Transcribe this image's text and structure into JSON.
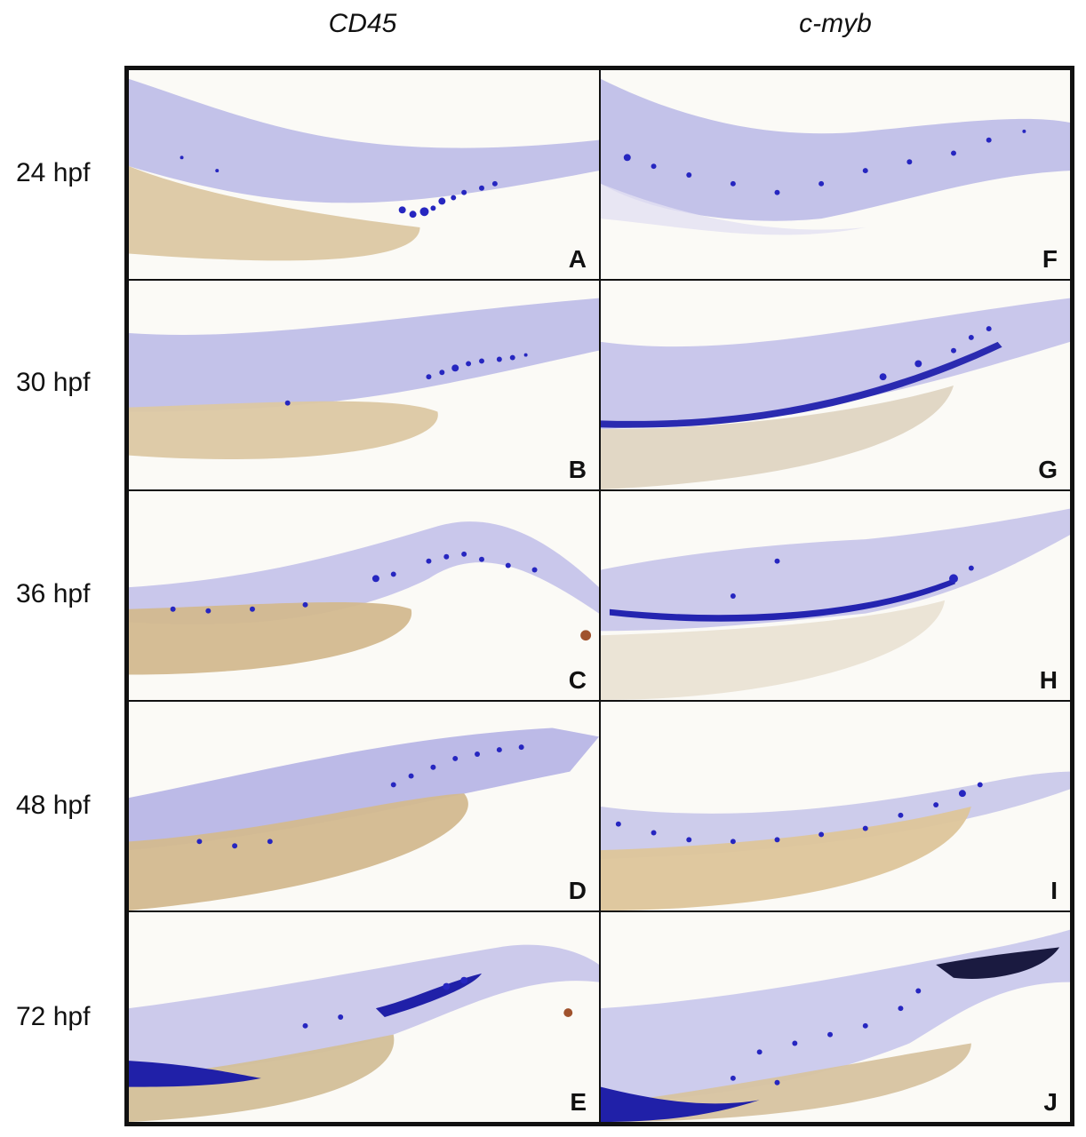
{
  "column_headers": [
    "CD45",
    "c-myb"
  ],
  "row_labels": [
    "24 hpf",
    "30 hpf",
    "36 hpf",
    "48 hpf",
    "72 hpf"
  ],
  "panel_letters": {
    "CD45": [
      "A",
      "B",
      "C",
      "D",
      "E"
    ],
    "c-myb": [
      "F",
      "G",
      "H",
      "I",
      "J"
    ]
  },
  "colors": {
    "stain": "#2a2ac8",
    "tissue": "#b9b6e6",
    "yolk": "#d9c29a",
    "background": "#fbfaf6",
    "border": "#111111"
  }
}
